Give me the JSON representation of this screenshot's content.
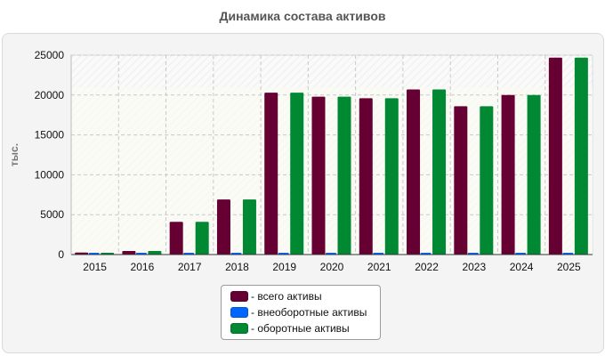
{
  "page": {
    "title": "Динамика состава активов"
  },
  "legend": {
    "items": [
      {
        "label": "- всего активы",
        "color": "#660033"
      },
      {
        "label": "- внеоборотные активы",
        "color": "#0066ff"
      },
      {
        "label": "- оборотные активы",
        "color": "#008833"
      }
    ]
  },
  "chart_data": {
    "type": "bar",
    "title": "Динамика состава активов",
    "xlabel": "",
    "ylabel": "тыс.",
    "ylim": [
      0,
      25000
    ],
    "yticks": [
      0,
      5000,
      10000,
      15000,
      20000,
      25000
    ],
    "grid": true,
    "legend_position": "bottom",
    "categories": [
      "2015",
      "2016",
      "2017",
      "2018",
      "2019",
      "2020",
      "2021",
      "2022",
      "2023",
      "2024",
      "2025"
    ],
    "series": [
      {
        "name": "- всего активы",
        "color": "#660033",
        "values": [
          250,
          450,
          4100,
          6900,
          20300,
          19800,
          19600,
          20700,
          18600,
          20000,
          24700
        ]
      },
      {
        "name": "- внеоборотные активы",
        "color": "#0066ff",
        "values": [
          50,
          60,
          70,
          70,
          90,
          90,
          90,
          90,
          90,
          90,
          100
        ]
      },
      {
        "name": "- оборотные активы",
        "color": "#008833",
        "values": [
          230,
          440,
          4100,
          6900,
          20300,
          19800,
          19600,
          20700,
          18600,
          20000,
          24700
        ]
      }
    ]
  }
}
